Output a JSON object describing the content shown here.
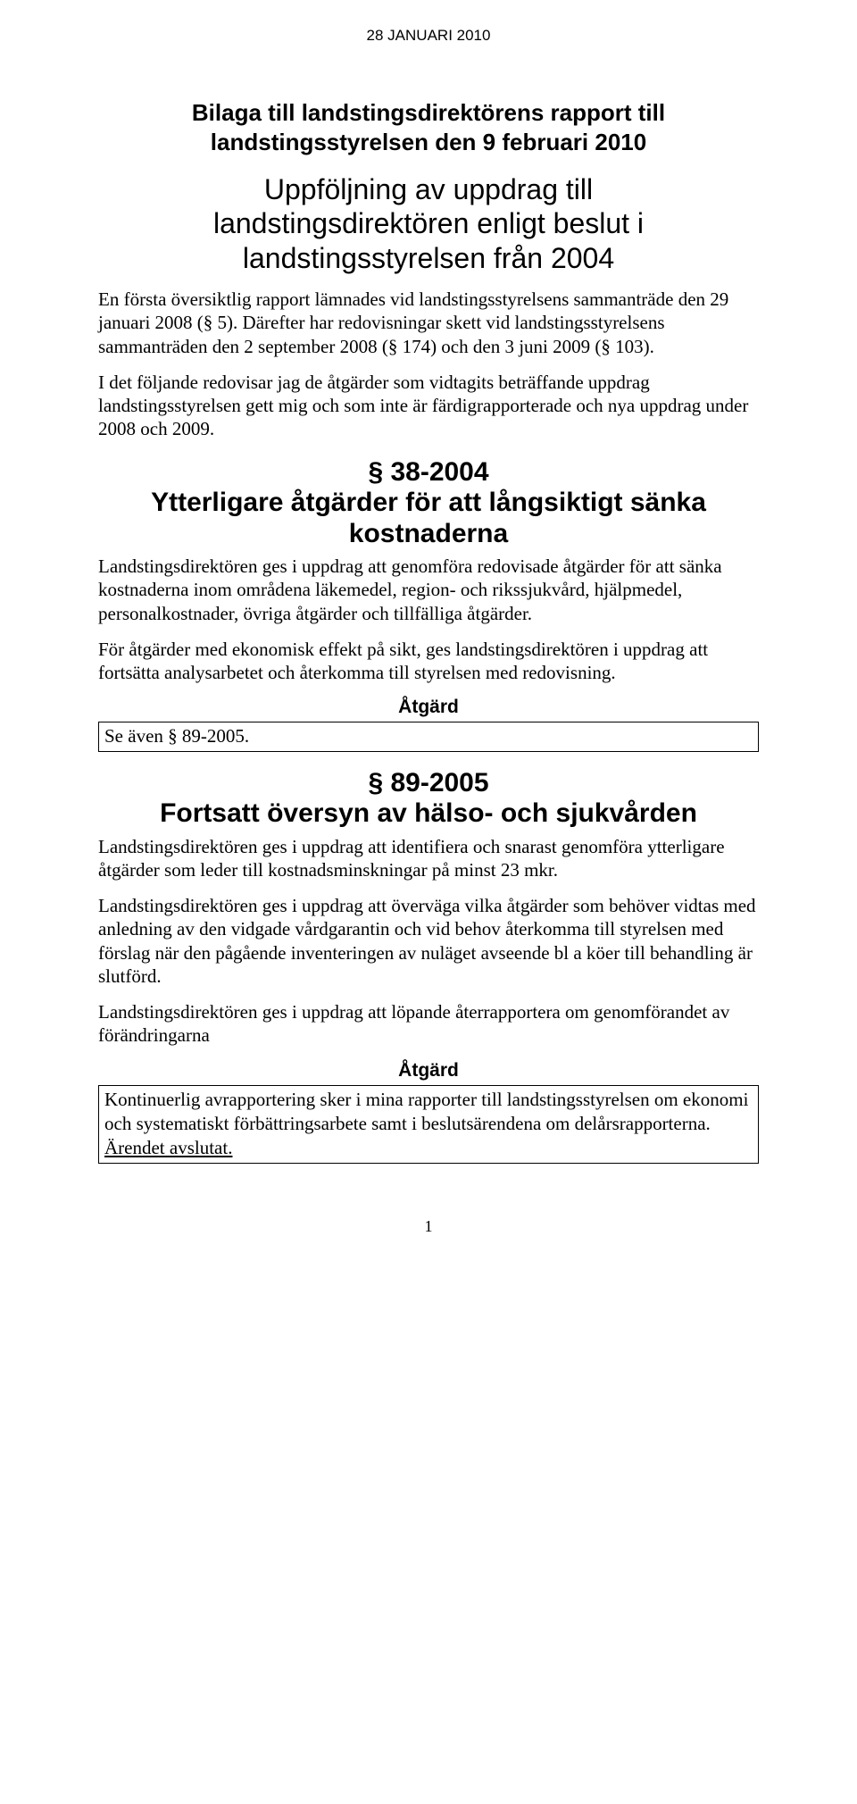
{
  "header_date": "28 JANUARI 2010",
  "title_line1": "Bilaga till landstingsdirektörens rapport till",
  "title_line2": "landstingsstyrelsen den 9 februari 2010",
  "subtitle_line1": "Uppföljning av uppdrag till",
  "subtitle_line2": "landstingsdirektören enligt beslut i",
  "subtitle_line3": "landstingsstyrelsen från 2004",
  "intro_para1": "En första översiktlig rapport lämnades vid landstingsstyrelsens sammanträde den 29 januari 2008 (§ 5). Därefter har redovisningar skett vid landstingsstyrelsens sammanträden den 2 september 2008 (§ 174) och den 3 juni 2009 (§ 103).",
  "intro_para2": "I det följande redovisar jag de åtgärder som vidtagits beträffande uppdrag landstingsstyrelsen gett mig och som inte är färdigrapporterade och nya uppdrag under 2008 och 2009.",
  "sec38_line1": "§ 38-2004",
  "sec38_line2": "Ytterligare åtgärder för att långsiktigt sänka",
  "sec38_line3": "kostnaderna",
  "sec38_para1": "Landstingsdirektören ges i uppdrag att genomföra redovisade åtgärder för att sänka kostnaderna inom områdena läkemedel, region- och rikssjukvård, hjälpmedel, personalkostnader, övriga åtgärder och tillfälliga åtgärder.",
  "sec38_para2": "För åtgärder med ekonomisk effekt på sikt, ges landstingsdirektören i uppdrag att fortsätta analysarbetet och återkomma till styrelsen med redovisning.",
  "atgard_label": "Åtgärd",
  "sec38_box": "Se även § 89-2005.",
  "sec89_line1": "§ 89-2005",
  "sec89_line2": "Fortsatt översyn av hälso- och sjukvården",
  "sec89_para1": "Landstingsdirektören ges i uppdrag att identifiera och snarast genomföra ytterligare åtgärder som leder till kostnadsminskningar på minst 23 mkr.",
  "sec89_para2": "Landstingsdirektören ges i uppdrag att överväga vilka åtgärder som behöver vidtas med anledning av den vidgade vårdgarantin och vid behov återkomma till styrelsen med förslag när den pågående inventeringen av nuläget avseende bl a köer till behandling är slutförd.",
  "sec89_para3": "Landstingsdirektören ges i uppdrag att löpande återrapportera om genomförandet av förändringarna",
  "sec89_box_para1": "Kontinuerlig avrapportering sker i mina rapporter till landstingsstyrelsen om ekonomi och systematiskt förbättringsarbete samt i beslutsärendena om delårsrapporterna.",
  "sec89_box_closed": "Ärendet avslutat.",
  "page_number": "1"
}
